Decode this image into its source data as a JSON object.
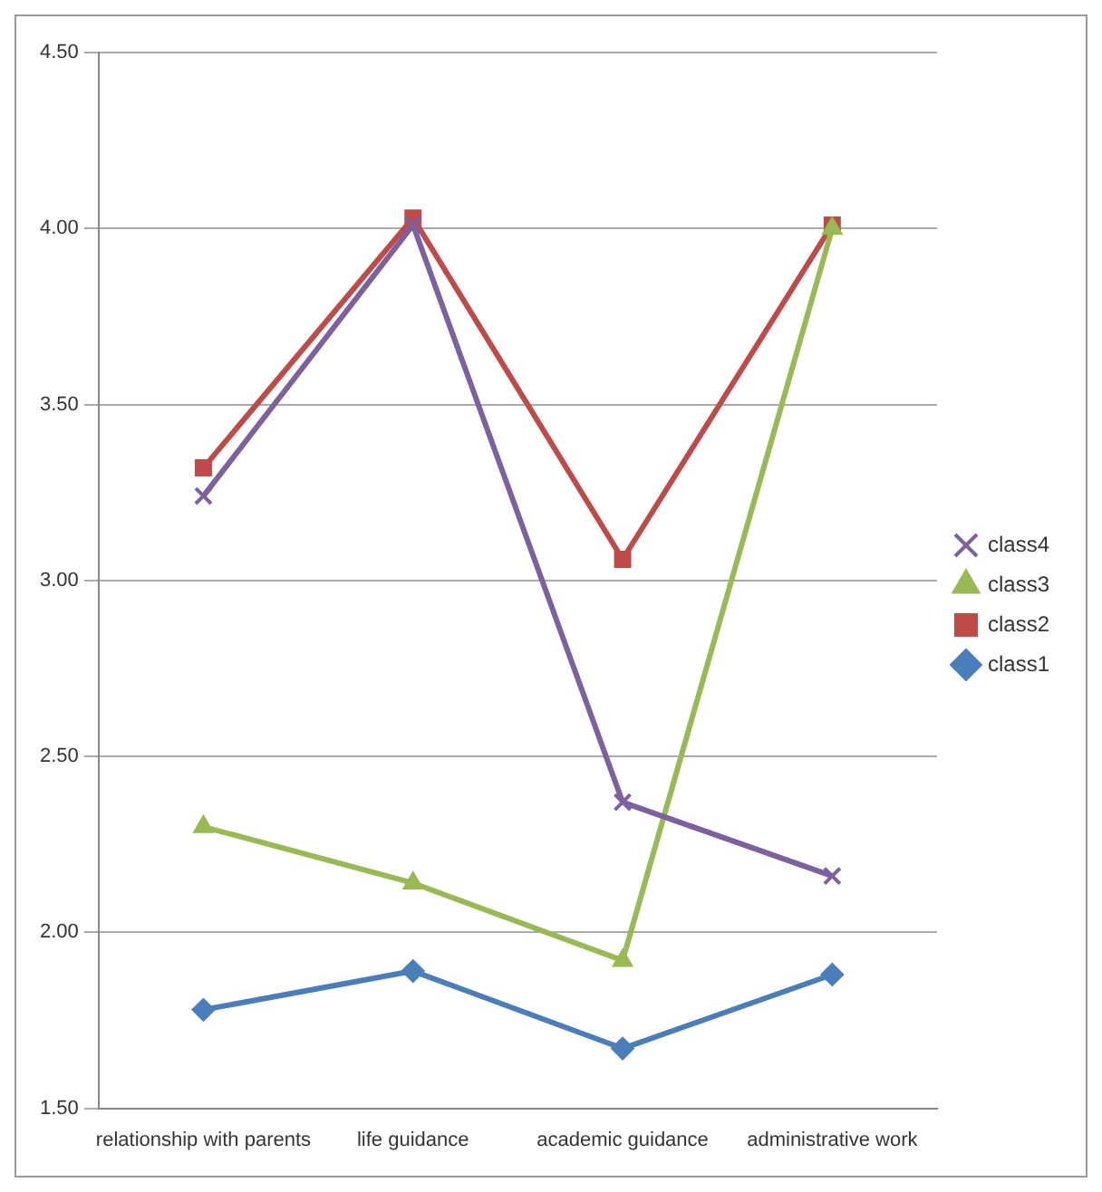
{
  "chart_data": {
    "type": "line",
    "categories": [
      "relationship with parents",
      "life guidance",
      "academic guidance",
      "administrative work"
    ],
    "series": [
      {
        "name": "class1",
        "color": "#4a7ebb",
        "marker": "diamond",
        "values": [
          1.78,
          1.89,
          1.67,
          1.88
        ]
      },
      {
        "name": "class2",
        "color": "#be4b48",
        "marker": "square",
        "values": [
          3.32,
          4.03,
          3.06,
          4.01
        ]
      },
      {
        "name": "class3",
        "color": "#98b954",
        "marker": "triangle",
        "values": [
          2.3,
          2.14,
          1.92,
          4.0
        ]
      },
      {
        "name": "class4",
        "color": "#7d60a0",
        "marker": "cross",
        "values": [
          3.24,
          4.01,
          2.37,
          2.16
        ]
      }
    ],
    "ylim": [
      1.5,
      4.5
    ],
    "yticks": [
      {
        "value": 1.5,
        "label": "1.50"
      },
      {
        "value": 2,
        "label": "2.00"
      },
      {
        "value": 2.5,
        "label": "2.50"
      },
      {
        "value": 3,
        "label": "3.00"
      },
      {
        "value": 3.5,
        "label": "3.50"
      },
      {
        "value": 4,
        "label": "4.00"
      },
      {
        "value": 4.5,
        "label": "4.50"
      }
    ],
    "grid": "y",
    "legend": "right",
    "line_style": "solid"
  }
}
